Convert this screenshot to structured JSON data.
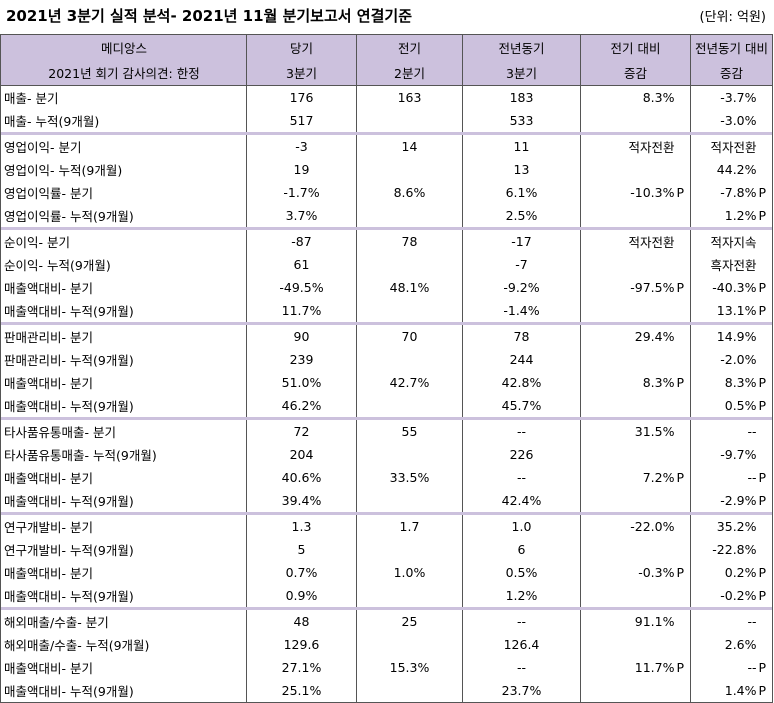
{
  "title": "2021년 3분기 실적 분석- 2021년 11월 분기보고서 연결기준",
  "unit": "(단위: 억원)",
  "header": {
    "company": "메디앙스",
    "audit": "2021년 회기 감사의견: 한정",
    "col1": [
      "당기",
      "3분기"
    ],
    "col2": [
      "전기",
      "2분기"
    ],
    "col3": [
      "전년동기",
      "3분기"
    ],
    "col4": [
      "전기 대비",
      "증감"
    ],
    "col5": [
      "전년동기 대비",
      "증감"
    ]
  },
  "groups": [
    {
      "rows": [
        {
          "label": "매출- 분기",
          "cur": "176",
          "prev": "163",
          "yoy": "183",
          "qoq": "8.3%",
          "qoq_p": "",
          "yoyc": "-3.7%",
          "yoyc_p": ""
        },
        {
          "label": "매출- 누적(9개월)",
          "cur": "517",
          "prev": "",
          "yoy": "533",
          "qoq": "",
          "qoq_p": "",
          "yoyc": "-3.0%",
          "yoyc_p": ""
        }
      ]
    },
    {
      "rows": [
        {
          "label": "영업이익- 분기",
          "cur": "-3",
          "prev": "14",
          "yoy": "11",
          "qoq": "적자전환",
          "qoq_p": "",
          "yoyc": "적자전환",
          "yoyc_p": ""
        },
        {
          "label": "영업이익- 누적(9개월)",
          "cur": "19",
          "prev": "",
          "yoy": "13",
          "qoq": "",
          "qoq_p": "",
          "yoyc": "44.2%",
          "yoyc_p": ""
        },
        {
          "label": "영업이익률- 분기",
          "cur": "-1.7%",
          "prev": "8.6%",
          "yoy": "6.1%",
          "qoq": "-10.3%",
          "qoq_p": "P",
          "yoyc": "-7.8%",
          "yoyc_p": "P"
        },
        {
          "label": "영업이익률- 누적(9개월)",
          "cur": "3.7%",
          "prev": "",
          "yoy": "2.5%",
          "qoq": "",
          "qoq_p": "",
          "yoyc": "1.2%",
          "yoyc_p": "P"
        }
      ]
    },
    {
      "rows": [
        {
          "label": "순이익- 분기",
          "cur": "-87",
          "prev": "78",
          "yoy": "-17",
          "qoq": "적자전환",
          "qoq_p": "",
          "yoyc": "적자지속",
          "yoyc_p": ""
        },
        {
          "label": "순이익- 누적(9개월)",
          "cur": "61",
          "prev": "",
          "yoy": "-7",
          "qoq": "",
          "qoq_p": "",
          "yoyc": "흑자전환",
          "yoyc_p": ""
        },
        {
          "label": "매출액대비- 분기",
          "cur": "-49.5%",
          "prev": "48.1%",
          "yoy": "-9.2%",
          "qoq": "-97.5%",
          "qoq_p": "P",
          "yoyc": "-40.3%",
          "yoyc_p": "P"
        },
        {
          "label": "매출액대비- 누적(9개월)",
          "cur": "11.7%",
          "prev": "",
          "yoy": "-1.4%",
          "qoq": "",
          "qoq_p": "",
          "yoyc": "13.1%",
          "yoyc_p": "P"
        }
      ]
    },
    {
      "rows": [
        {
          "label": "판매관리비- 분기",
          "cur": "90",
          "prev": "70",
          "yoy": "78",
          "qoq": "29.4%",
          "qoq_p": "",
          "yoyc": "14.9%",
          "yoyc_p": ""
        },
        {
          "label": "판매관리비- 누적(9개월)",
          "cur": "239",
          "prev": "",
          "yoy": "244",
          "qoq": "",
          "qoq_p": "",
          "yoyc": "-2.0%",
          "yoyc_p": ""
        },
        {
          "label": "매출액대비- 분기",
          "cur": "51.0%",
          "prev": "42.7%",
          "yoy": "42.8%",
          "qoq": "8.3%",
          "qoq_p": "P",
          "yoyc": "8.3%",
          "yoyc_p": "P"
        },
        {
          "label": "매출액대비- 누적(9개월)",
          "cur": "46.2%",
          "prev": "",
          "yoy": "45.7%",
          "qoq": "",
          "qoq_p": "",
          "yoyc": "0.5%",
          "yoyc_p": "P"
        }
      ]
    },
    {
      "rows": [
        {
          "label": "타사품유통매출- 분기",
          "cur": "72",
          "prev": "55",
          "yoy": "--",
          "qoq": "31.5%",
          "qoq_p": "",
          "yoyc": "--",
          "yoyc_p": ""
        },
        {
          "label": "타사품유통매출- 누적(9개월)",
          "cur": "204",
          "prev": "",
          "yoy": "226",
          "qoq": "",
          "qoq_p": "",
          "yoyc": "-9.7%",
          "yoyc_p": ""
        },
        {
          "label": "매출액대비- 분기",
          "cur": "40.6%",
          "prev": "33.5%",
          "yoy": "--",
          "qoq": "7.2%",
          "qoq_p": "P",
          "yoyc": "--",
          "yoyc_p": "P"
        },
        {
          "label": "매출액대비- 누적(9개월)",
          "cur": "39.4%",
          "prev": "",
          "yoy": "42.4%",
          "qoq": "",
          "qoq_p": "",
          "yoyc": "-2.9%",
          "yoyc_p": "P"
        }
      ]
    },
    {
      "rows": [
        {
          "label": "연구개발비- 분기",
          "cur": "1.3",
          "prev": "1.7",
          "yoy": "1.0",
          "qoq": "-22.0%",
          "qoq_p": "",
          "yoyc": "35.2%",
          "yoyc_p": ""
        },
        {
          "label": "연구개발비- 누적(9개월)",
          "cur": "5",
          "prev": "",
          "yoy": "6",
          "qoq": "",
          "qoq_p": "",
          "yoyc": "-22.8%",
          "yoyc_p": ""
        },
        {
          "label": "매출액대비- 분기",
          "cur": "0.7%",
          "prev": "1.0%",
          "yoy": "0.5%",
          "qoq": "-0.3%",
          "qoq_p": "P",
          "yoyc": "0.2%",
          "yoyc_p": "P"
        },
        {
          "label": "매출액대비- 누적(9개월)",
          "cur": "0.9%",
          "prev": "",
          "yoy": "1.2%",
          "qoq": "",
          "qoq_p": "",
          "yoyc": "-0.2%",
          "yoyc_p": "P"
        }
      ]
    },
    {
      "rows": [
        {
          "label": "해외매출/수출- 분기",
          "cur": "48",
          "prev": "25",
          "yoy": "--",
          "qoq": "91.1%",
          "qoq_p": "",
          "yoyc": "--",
          "yoyc_p": ""
        },
        {
          "label": "해외매출/수출- 누적(9개월)",
          "cur": "129.6",
          "prev": "",
          "yoy": "126.4",
          "qoq": "",
          "qoq_p": "",
          "yoyc": "2.6%",
          "yoyc_p": ""
        },
        {
          "label": "매출액대비- 분기",
          "cur": "27.1%",
          "prev": "15.3%",
          "yoy": "--",
          "qoq": "11.7%",
          "qoq_p": "P",
          "yoyc": "--",
          "yoyc_p": "P"
        },
        {
          "label": "매출액대비- 누적(9개월)",
          "cur": "25.1%",
          "prev": "",
          "yoy": "23.7%",
          "qoq": "",
          "qoq_p": "",
          "yoyc": "1.4%",
          "yoyc_p": "P"
        }
      ]
    }
  ]
}
